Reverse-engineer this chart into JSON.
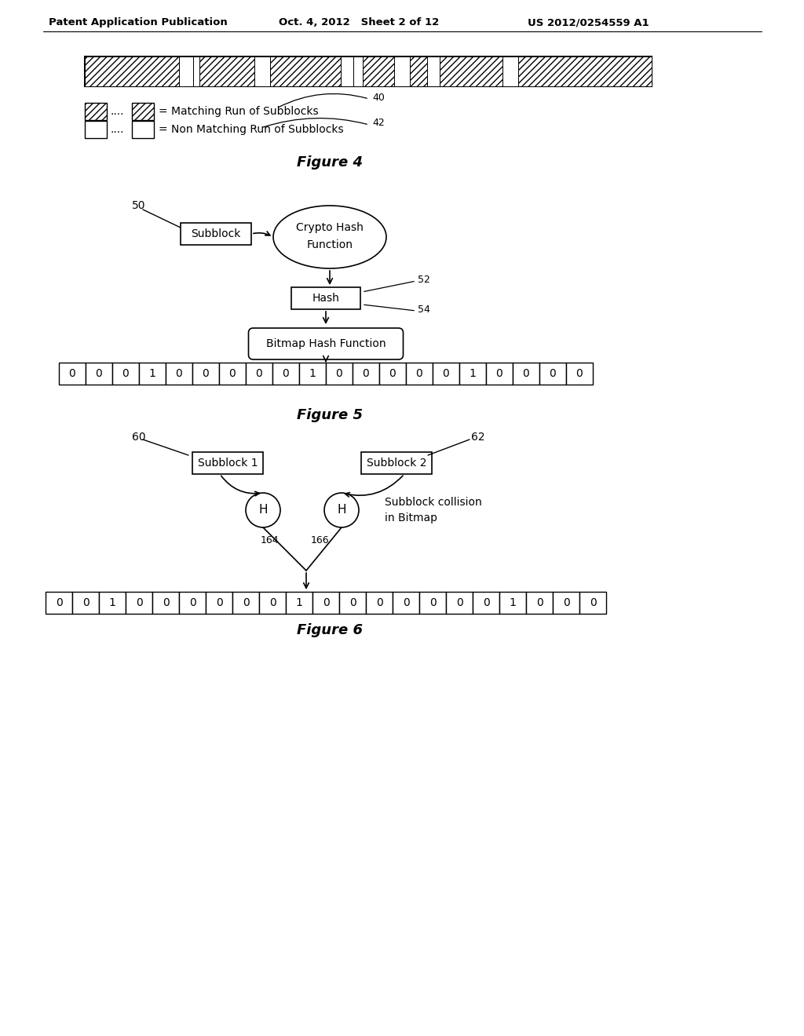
{
  "header_left": "Patent Application Publication",
  "header_mid": "Oct. 4, 2012   Sheet 2 of 12",
  "header_right": "US 2012/0254559 A1",
  "fig4_caption": "Figure 4",
  "fig5_caption": "Figure 5",
  "fig6_caption": "Figure 6",
  "fig5_bits": [
    0,
    0,
    0,
    1,
    0,
    0,
    0,
    0,
    0,
    1,
    0,
    0,
    0,
    0,
    0,
    1,
    0,
    0,
    0,
    0
  ],
  "fig6_bits": [
    0,
    0,
    1,
    0,
    0,
    0,
    0,
    0,
    0,
    1,
    0,
    0,
    0,
    0,
    0,
    0,
    0,
    1,
    0,
    0,
    0
  ],
  "bg_color": "#ffffff",
  "fg_color": "#000000"
}
